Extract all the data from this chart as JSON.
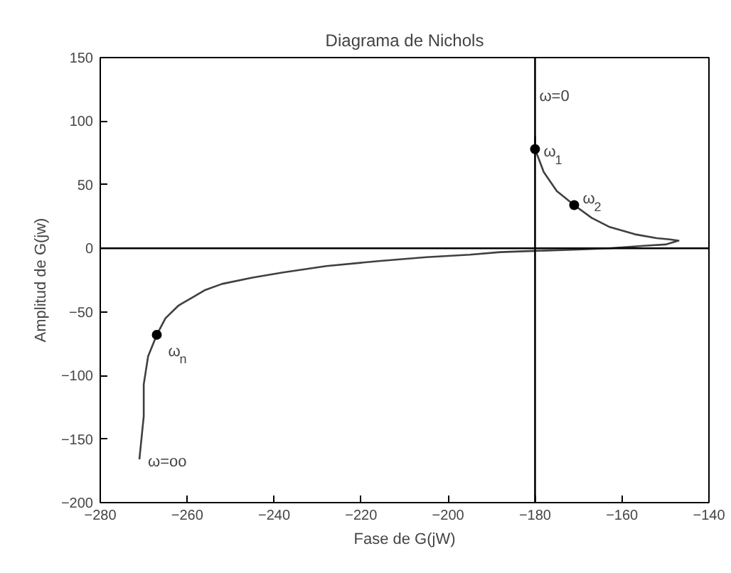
{
  "chart_data": {
    "type": "line",
    "title": "Diagrama de Nichols",
    "xlabel": "Fase de G(jW)",
    "ylabel": "Amplitud de G(jw)",
    "xlim": [
      -280,
      -140
    ],
    "ylim": [
      -200,
      150
    ],
    "xticks": [
      -280,
      -260,
      -240,
      -220,
      -200,
      -180,
      -160,
      -140
    ],
    "yticks": [
      -200,
      -150,
      -100,
      -50,
      0,
      50,
      100,
      150
    ],
    "grid": false,
    "series": [
      {
        "color": "#404040",
        "marker": "none",
        "x": [
          -180,
          -180,
          -178,
          -175,
          -171,
          -167,
          -163,
          -157,
          -152,
          -149,
          -147,
          -150,
          -155,
          -163,
          -170,
          -180,
          -188,
          -195,
          -205,
          -216,
          -228,
          -238,
          -245,
          -252,
          -256,
          -259,
          -262,
          -265,
          -267,
          -269,
          -270,
          -270,
          -271
        ],
        "values": [
          88,
          78,
          60,
          45,
          34,
          24,
          17,
          11,
          8,
          7,
          6,
          3,
          2,
          0,
          -1,
          -2,
          -3,
          -5,
          -7,
          -10,
          -14,
          -19,
          -23,
          -28,
          -33,
          -39,
          -45,
          -55,
          -68,
          -85,
          -107,
          -132,
          -166
        ]
      },
      {
        "type": "scatter",
        "color": "#000000",
        "marker": "circle",
        "x": [
          -180,
          -171,
          -267
        ],
        "values": [
          78,
          34,
          -68
        ]
      }
    ],
    "ref_lines": [
      {
        "axis": "x",
        "value": -180,
        "color": "#000000"
      },
      {
        "axis": "y",
        "value": 0,
        "color": "#000000"
      }
    ],
    "annotations": [
      {
        "text": "ω=0",
        "x": -180,
        "y": 88
      },
      {
        "text": "ω$_{1}$",
        "x": -180,
        "y": 78
      },
      {
        "text": "ω$_{2}$",
        "x": -171,
        "y": 34
      },
      {
        "text": "ω$_{n}$",
        "x": -267,
        "y": -68
      },
      {
        "text": "ω=oo",
        "x": -271,
        "y": -166
      }
    ]
  }
}
